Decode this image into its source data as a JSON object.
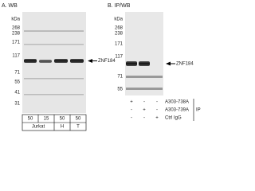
{
  "panel_a": {
    "title": "A. WB",
    "unit": "kDa",
    "markers": [
      "268",
      "238",
      "171",
      "117",
      "71",
      "55",
      "41",
      "31"
    ],
    "band_label": "ZNF184",
    "amounts": [
      "50",
      "15",
      "50",
      "50"
    ],
    "samples": [
      "Jurkat",
      "H",
      "T"
    ]
  },
  "panel_b": {
    "title": "B. IP/WB",
    "unit": "kDa",
    "markers": [
      "268",
      "238",
      "171",
      "117",
      "71",
      "55"
    ],
    "band_label": "ZNF184",
    "ip_rows": [
      {
        "signs": [
          "+",
          "-",
          "-"
        ],
        "label": "A303-738A"
      },
      {
        "signs": [
          "-",
          "+",
          "-"
        ],
        "label": "A303-739A"
      },
      {
        "signs": [
          "-",
          "-",
          "+"
        ],
        "label": "Ctrl IgG"
      }
    ],
    "ip_label": "IP"
  }
}
